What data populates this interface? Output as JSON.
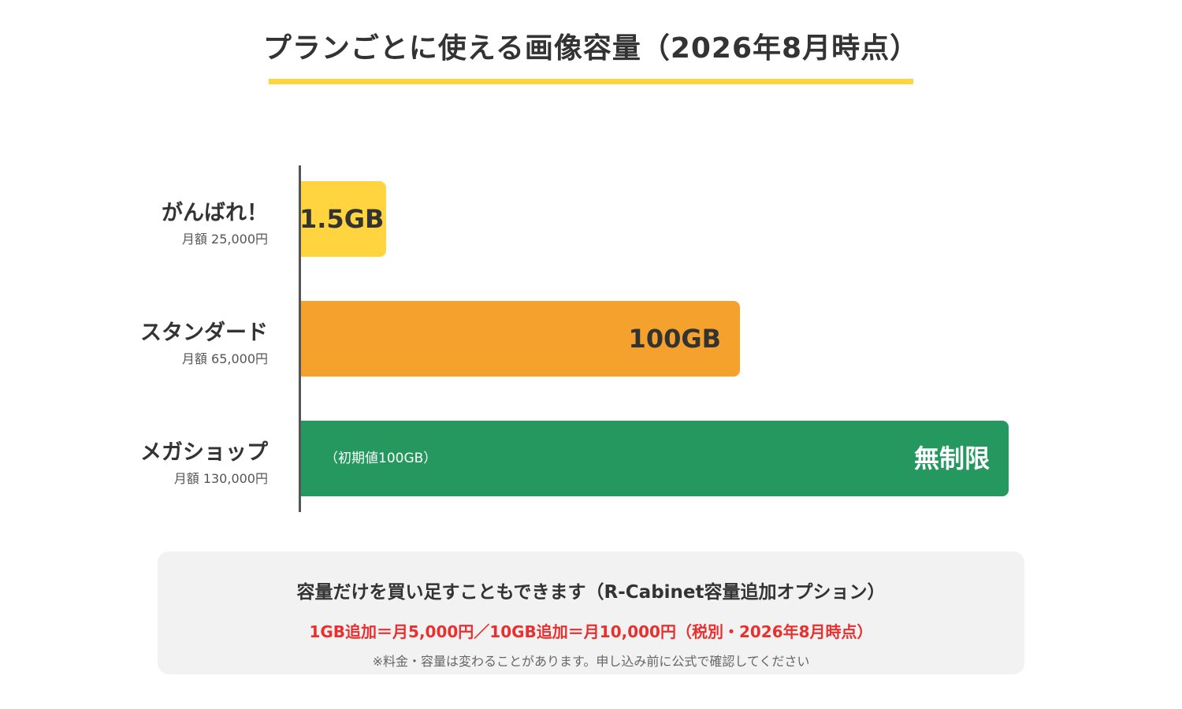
{
  "chart_data": {
    "type": "bar",
    "orientation": "horizontal",
    "title": "プランごとに使える画像容量（2026年8月時点）",
    "categories": [
      "がんばれ！",
      "スタンダード",
      "メガショップ"
    ],
    "category_prices": [
      "月額 25,000円",
      "月額 65,000円",
      "月額 130,000円"
    ],
    "values_gb": [
      1.5,
      100,
      null
    ],
    "bar_fraction": [
      0.12,
      0.62,
      1.0
    ],
    "data_labels": [
      "1.5GB",
      "100GB",
      "無制限"
    ],
    "bar_notes": [
      "",
      "",
      "（初期値100GB）"
    ],
    "colors": [
      "#ffd43f",
      "#f4a22d",
      "#25985f"
    ],
    "label_colors": [
      "#333333",
      "#333333",
      "#ffffff"
    ]
  },
  "info": {
    "heading": "容量だけを買い足すこともできます（R-Cabinet容量追加オプション）",
    "price": "1GB追加＝月5,000円／10GB追加＝月10,000円（税別・2026年8月時点）",
    "note": "※料金・容量は変わることがあります。申し込み前に公式で確認してください"
  },
  "colors": {
    "accent": "#ffd43f",
    "price_highlight": "#e8302f",
    "axis": "#555555"
  }
}
